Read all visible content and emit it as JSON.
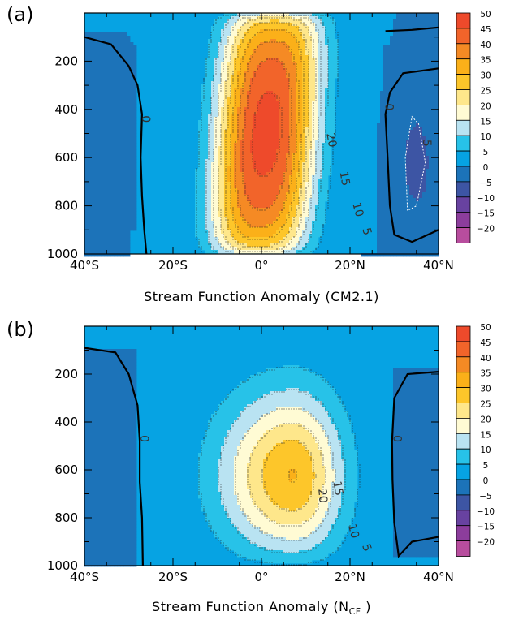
{
  "panels": [
    {
      "label": "(a)",
      "xlabel_main": "Stream Function Anomaly (CM2.1)",
      "xlabel_sub": ""
    },
    {
      "label": "(b)",
      "xlabel_main": "Stream Function Anomaly (N",
      "xlabel_sub": "CF"
    }
  ],
  "chart_data": [
    {
      "type": "heatmap",
      "title": "Stream Function Anomaly (CM2.1)",
      "xlabel": "",
      "ylabel": "",
      "x_ticks": [
        "40°S",
        "20°S",
        "0°",
        "20°N",
        "40°N"
      ],
      "x_range": [
        -40,
        40
      ],
      "y_ticks": [
        "200",
        "400",
        "600",
        "800",
        "1000"
      ],
      "y_range": [
        0,
        1000
      ],
      "y_reversed": true,
      "max_value": 47,
      "max_location": {
        "lat": 2,
        "pressure": 430
      },
      "negative_minimum": -8,
      "negative_minimum_location": {
        "lat": 35,
        "pressure": 620
      },
      "contour_labels": [
        "0",
        "0",
        "20",
        "15",
        "10",
        "5",
        "5"
      ],
      "colorbar_levels": [
        50,
        45,
        40,
        35,
        30,
        25,
        20,
        15,
        10,
        5,
        0,
        -5,
        -10,
        -15,
        -20
      ]
    },
    {
      "type": "heatmap",
      "title": "Stream Function Anomaly (NCF)",
      "xlabel": "",
      "ylabel": "",
      "x_ticks": [
        "40°S",
        "20°S",
        "0°",
        "20°N",
        "40°N"
      ],
      "x_range": [
        -40,
        40
      ],
      "y_ticks": [
        "200",
        "400",
        "600",
        "800",
        "1000"
      ],
      "y_range": [
        0,
        1000
      ],
      "y_reversed": true,
      "max_value": 31,
      "max_location": {
        "lat": 7,
        "pressure": 650
      },
      "contour_labels": [
        "0",
        "0",
        "20",
        "15",
        "10",
        "5"
      ],
      "colorbar_levels": [
        50,
        45,
        40,
        35,
        30,
        25,
        20,
        15,
        10,
        5,
        0,
        -5,
        -10,
        -15,
        -20
      ]
    }
  ],
  "colorbar": {
    "levels": [
      "50",
      "45",
      "40",
      "35",
      "30",
      "25",
      "20",
      "15",
      "10",
      "5",
      "0",
      "−5",
      "−10",
      "−15",
      "−20"
    ],
    "colors": [
      "#ee4a2b",
      "#f2642a",
      "#f58a24",
      "#fbb019",
      "#fdc62a",
      "#fee78b",
      "#fffbd4",
      "#b9e3f2",
      "#27c2e8",
      "#06a3e3",
      "#1c73b9",
      "#3d55a4",
      "#6842a0",
      "#8c3d9c",
      "#b84d9e"
    ]
  }
}
